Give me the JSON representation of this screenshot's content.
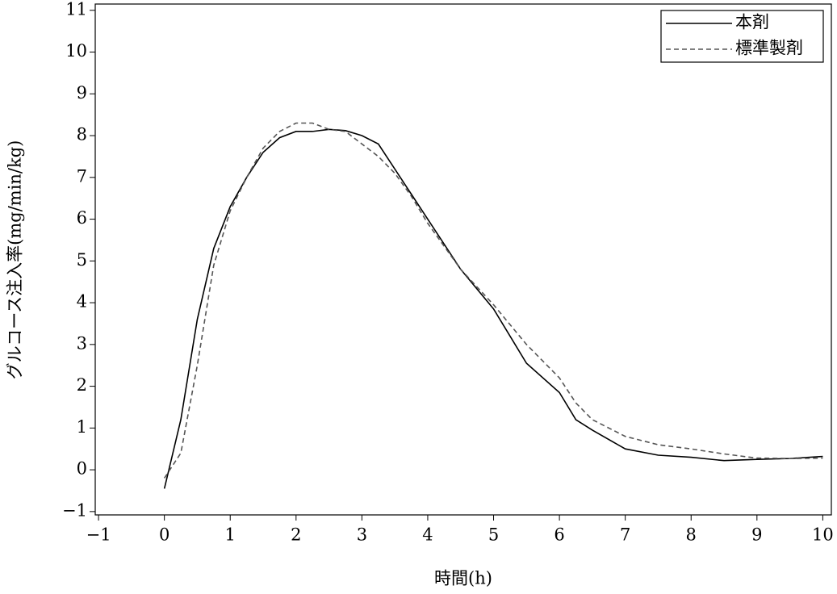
{
  "chart_data": {
    "type": "line",
    "x_label": "時間(h)",
    "y_label": "グルコース注入率(mg/min/kg)",
    "x": [
      0,
      0.25,
      0.5,
      0.75,
      1,
      1.25,
      1.5,
      1.75,
      2,
      2.25,
      2.5,
      2.75,
      3,
      3.25,
      3.5,
      3.75,
      4,
      4.5,
      5,
      5.5,
      6,
      6.25,
      6.5,
      7,
      7.5,
      8,
      8.5,
      9,
      9.5,
      10
    ],
    "series": [
      {
        "name": "本剤",
        "color": "#000000",
        "dash": "solid",
        "values": [
          -0.45,
          1.2,
          3.6,
          5.3,
          6.3,
          7.0,
          7.6,
          7.95,
          8.1,
          8.1,
          8.15,
          8.12,
          8.0,
          7.8,
          7.2,
          6.6,
          6.0,
          4.8,
          3.85,
          2.55,
          1.85,
          1.2,
          0.95,
          0.5,
          0.35,
          0.3,
          0.22,
          0.25,
          0.27,
          0.32
        ]
      },
      {
        "name": "標準製剤",
        "color": "#555555",
        "dash": "dashed",
        "values": [
          -0.2,
          0.4,
          2.5,
          4.9,
          6.2,
          7.0,
          7.7,
          8.1,
          8.3,
          8.3,
          8.15,
          8.1,
          7.8,
          7.5,
          7.1,
          6.55,
          5.9,
          4.8,
          3.95,
          3.0,
          2.2,
          1.6,
          1.2,
          0.8,
          0.6,
          0.5,
          0.38,
          0.28,
          0.27,
          0.28
        ]
      }
    ],
    "xlim": [
      -1.05,
      10.13
    ],
    "ylim": [
      -1.08,
      11.15
    ],
    "xticks": [
      {
        "value": -1,
        "label": "−1"
      },
      0,
      1,
      2,
      3,
      4,
      5,
      6,
      7,
      8,
      9,
      10
    ],
    "yticks": [
      {
        "value": -1,
        "label": "−1"
      },
      0,
      1,
      2,
      3,
      4,
      5,
      6,
      7,
      8,
      9,
      10,
      11
    ],
    "legend": "upper right"
  }
}
